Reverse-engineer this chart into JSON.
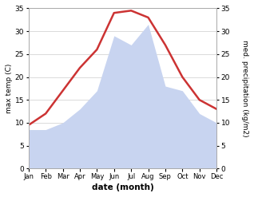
{
  "months": [
    "Jan",
    "Feb",
    "Mar",
    "Apr",
    "May",
    "Jun",
    "Jul",
    "Aug",
    "Sep",
    "Oct",
    "Nov",
    "Dec"
  ],
  "temperature": [
    9.5,
    12.0,
    17.0,
    22.0,
    26.0,
    34.0,
    34.5,
    33.0,
    27.0,
    20.0,
    15.0,
    13.0
  ],
  "precipitation": [
    8.5,
    8.5,
    10.0,
    13.0,
    17.0,
    29.0,
    27.0,
    31.5,
    18.0,
    17.0,
    12.0,
    10.0
  ],
  "temp_color": "#cc3333",
  "precip_fill_color": "#c8d4f0",
  "ylim_left": [
    0,
    35
  ],
  "ylim_right": [
    0,
    35
  ],
  "xlabel": "date (month)",
  "ylabel_left": "max temp (C)",
  "ylabel_right": "med. precipitation (kg/m2)",
  "yticks": [
    0,
    5,
    10,
    15,
    20,
    25,
    30,
    35
  ],
  "grid_color": "#cccccc",
  "temp_linewidth": 1.8,
  "figsize": [
    3.18,
    2.47
  ],
  "dpi": 100
}
